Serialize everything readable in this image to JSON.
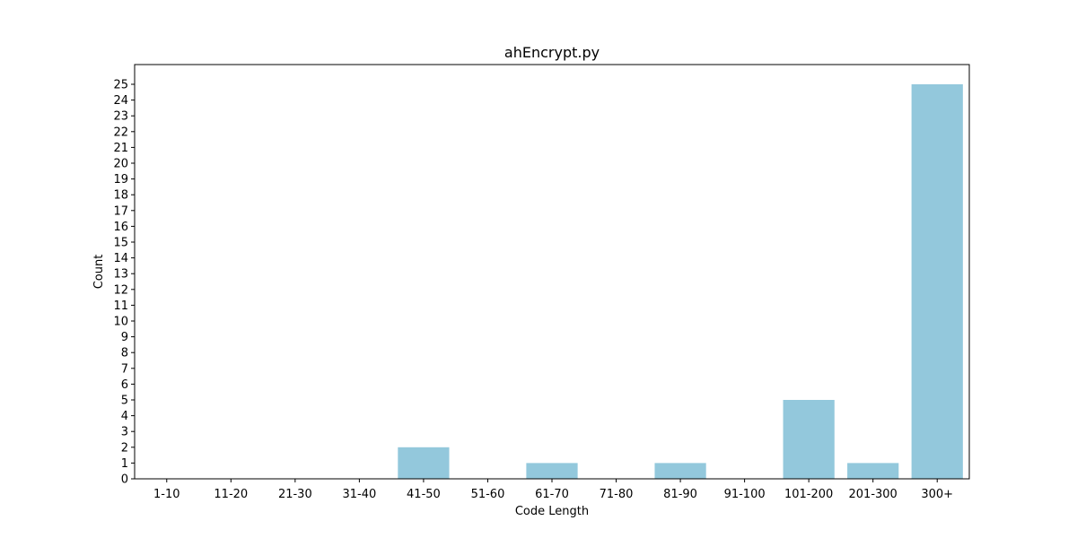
{
  "chart_data": {
    "type": "bar",
    "title": "ahEncrypt.py",
    "xlabel": "Code Length",
    "ylabel": "Count",
    "categories": [
      "1-10",
      "11-20",
      "21-30",
      "31-40",
      "41-50",
      "51-60",
      "61-70",
      "71-80",
      "81-90",
      "91-100",
      "101-200",
      "201-300",
      "300+"
    ],
    "values": [
      0,
      0,
      0,
      0,
      2,
      0,
      1,
      0,
      1,
      0,
      5,
      1,
      25
    ],
    "ylim": [
      0,
      26.25
    ],
    "yticks": [
      0,
      1,
      2,
      3,
      4,
      5,
      6,
      7,
      8,
      9,
      10,
      11,
      12,
      13,
      14,
      15,
      16,
      17,
      18,
      19,
      20,
      21,
      22,
      23,
      24,
      25
    ],
    "grid": false,
    "bar_color": "#93c8dc"
  }
}
